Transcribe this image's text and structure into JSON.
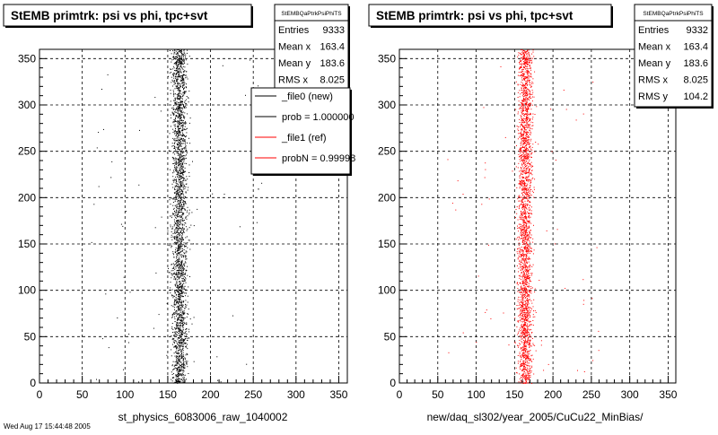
{
  "pads": [
    {
      "title": "StEMB primtrk: psi vs phi, tpc+svt",
      "stats": {
        "name": "StEMBQaPtrkPsiPhiTS",
        "rows": [
          {
            "label": "Entries",
            "value": "9333"
          },
          {
            "label": "Mean x",
            "value": "163.4"
          },
          {
            "label": "Mean y",
            "value": "183.6"
          },
          {
            "label": "RMS x",
            "value": "8.025"
          }
        ]
      },
      "legend": [
        {
          "label": "_file0 (new)",
          "color": "#000000"
        },
        {
          "label": "prob = 1.000000",
          "color": "#000000"
        },
        {
          "label": "_file1 (ref)",
          "color": "#ff0000"
        },
        {
          "label": "probN = 0.99998",
          "color": "#ff0000"
        }
      ],
      "xlabel": "st_physics_6083006_raw_1040002"
    },
    {
      "title": "StEMB primtrk: psi vs phi, tpc+svt",
      "stats": {
        "name": "StEMBQaPtrkPsiPhiTS",
        "rows": [
          {
            "label": "Entries",
            "value": "9332"
          },
          {
            "label": "Mean x",
            "value": "163.4"
          },
          {
            "label": "Mean y",
            "value": "183.6"
          },
          {
            "label": "RMS x",
            "value": "8.025"
          },
          {
            "label": "RMS y",
            "value": "104.2"
          }
        ]
      },
      "legend": [],
      "xlabel": "new/daq_sl302/year_2005/CuCu22_MinBias/"
    }
  ],
  "footer": "Wed Aug 17 15:44:48 2005",
  "chart_data": [
    {
      "type": "scatter",
      "title": "StEMB primtrk: psi vs phi, tpc+svt",
      "xlabel": "st_physics_6083006_raw_1040002",
      "ylabel": "",
      "xlim": [
        0,
        360
      ],
      "ylim": [
        0,
        360
      ],
      "xticks": [
        0,
        50,
        100,
        150,
        200,
        250,
        300,
        350
      ],
      "yticks": [
        0,
        50,
        100,
        150,
        200,
        250,
        300,
        350
      ],
      "grid": true,
      "legend_position": "top-right",
      "series": [
        {
          "name": "_file0 (new)",
          "color": "#000000",
          "entries": 9333,
          "mean_x": 163.4,
          "mean_y": 183.6,
          "rms_x": 8.025,
          "rms_y": 104.2
        }
      ]
    },
    {
      "type": "scatter",
      "title": "StEMB primtrk: psi vs phi, tpc+svt",
      "xlabel": "new/daq_sl302/year_2005/CuCu22_MinBias/",
      "ylabel": "",
      "xlim": [
        0,
        360
      ],
      "ylim": [
        0,
        360
      ],
      "xticks": [
        0,
        50,
        100,
        150,
        200,
        250,
        300,
        350
      ],
      "yticks": [
        0,
        50,
        100,
        150,
        200,
        250,
        300,
        350
      ],
      "grid": true,
      "legend_position": "none",
      "series": [
        {
          "name": "_file1 (ref)",
          "color": "#ff0000",
          "entries": 9332,
          "mean_x": 163.4,
          "mean_y": 183.6,
          "rms_x": 8.025,
          "rms_y": 104.2
        }
      ]
    }
  ]
}
